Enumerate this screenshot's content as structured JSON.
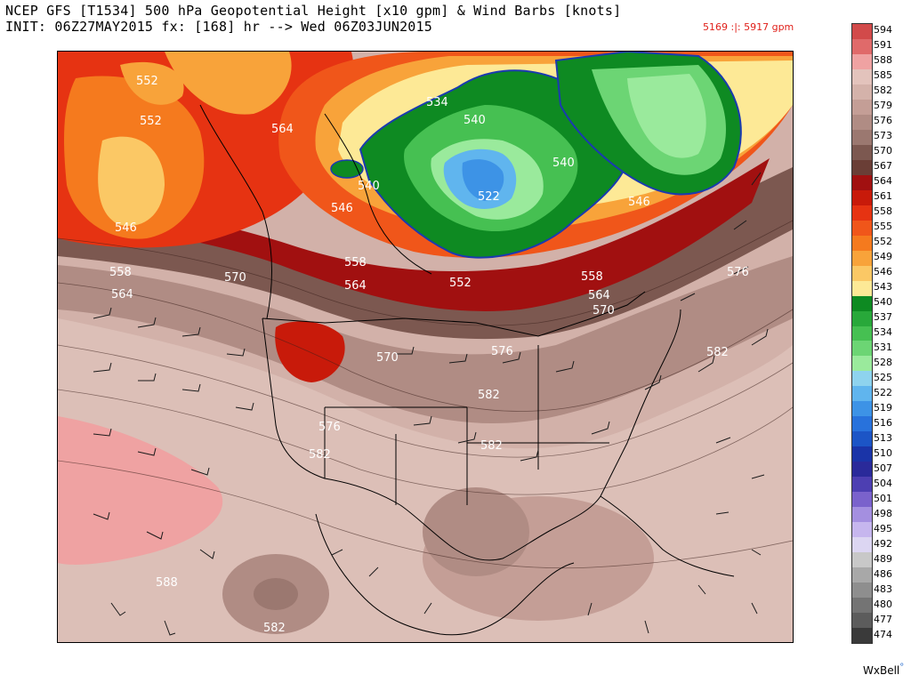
{
  "header": {
    "title_line1": "NCEP GFS [T1534] 500 hPa Geopotential Height [x10 gpm] & Wind Barbs [knots]",
    "title_line2": "INIT: 06Z27MAY2015 fx: [168] hr --> Wed 06Z03JUN2015",
    "range_text": "5169 :|: 5917 gpm",
    "range_color": "#e0201a"
  },
  "map": {
    "contour_labels": [
      "552",
      "552",
      "546",
      "558",
      "564",
      "570",
      "564",
      "540",
      "546",
      "534",
      "522",
      "540",
      "546",
      "540",
      "558",
      "564",
      "552",
      "558",
      "564",
      "570",
      "576",
      "576",
      "570",
      "582",
      "582",
      "576",
      "582",
      "582",
      "588",
      "582",
      "576"
    ]
  },
  "colorbar": {
    "levels": [
      {
        "label": "594",
        "color": "#d24a4a"
      },
      {
        "label": "591",
        "color": "#e06a6a"
      },
      {
        "label": "588",
        "color": "#efa2a2"
      },
      {
        "label": "585",
        "color": "#e3c3bc"
      },
      {
        "label": "582",
        "color": "#d4b2aa"
      },
      {
        "label": "579",
        "color": "#c49e96"
      },
      {
        "label": "576",
        "color": "#b08c84"
      },
      {
        "label": "573",
        "color": "#9b7870"
      },
      {
        "label": "570",
        "color": "#7c5850"
      },
      {
        "label": "567",
        "color": "#6a3e36"
      },
      {
        "label": "564",
        "color": "#a11010"
      },
      {
        "label": "561",
        "color": "#c81a0a"
      },
      {
        "label": "558",
        "color": "#e63312"
      },
      {
        "label": "555",
        "color": "#f0561a"
      },
      {
        "label": "552",
        "color": "#f57a1e"
      },
      {
        "label": "549",
        "color": "#f8a33a"
      },
      {
        "label": "546",
        "color": "#fbc865"
      },
      {
        "label": "543",
        "color": "#fde996"
      },
      {
        "label": "540",
        "color": "#0e8a22"
      },
      {
        "label": "537",
        "color": "#28a83a"
      },
      {
        "label": "534",
        "color": "#46c052"
      },
      {
        "label": "531",
        "color": "#6cd574"
      },
      {
        "label": "528",
        "color": "#9aea9c"
      },
      {
        "label": "525",
        "color": "#8ed3ee"
      },
      {
        "label": "522",
        "color": "#60b5ee"
      },
      {
        "label": "519",
        "color": "#3d93e6"
      },
      {
        "label": "516",
        "color": "#2872dc"
      },
      {
        "label": "513",
        "color": "#1c55c6"
      },
      {
        "label": "510",
        "color": "#1a34a8"
      },
      {
        "label": "507",
        "color": "#2a2a9a"
      },
      {
        "label": "504",
        "color": "#4d3fb2"
      },
      {
        "label": "501",
        "color": "#7a62cc"
      },
      {
        "label": "498",
        "color": "#a48fe0"
      },
      {
        "label": "495",
        "color": "#c6b6ee"
      },
      {
        "label": "492",
        "color": "#dcd6f2"
      },
      {
        "label": "489",
        "color": "#c8c8c8"
      },
      {
        "label": "486",
        "color": "#a8a8a8"
      },
      {
        "label": "483",
        "color": "#8e8e8e"
      },
      {
        "label": "480",
        "color": "#747474"
      },
      {
        "label": "477",
        "color": "#5c5c5c"
      },
      {
        "label": "474",
        "color": "#3a3a3a"
      }
    ]
  },
  "footer": {
    "credit": "WxBell",
    "credit_mark": "°"
  }
}
